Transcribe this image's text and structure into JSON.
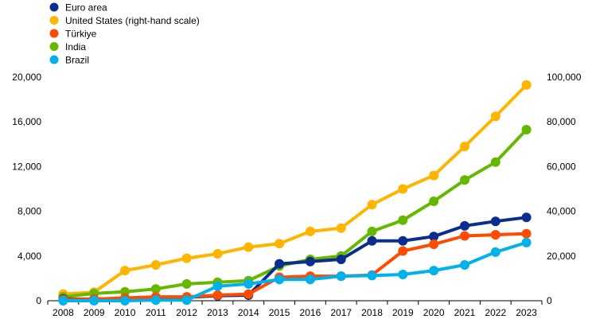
{
  "chart_data": {
    "type": "line",
    "title": "",
    "legend_position": "top-left",
    "grid": false,
    "x": [
      "2008",
      "2009",
      "2010",
      "2011",
      "2012",
      "2013",
      "2014",
      "2015",
      "2016",
      "2017",
      "2018",
      "2019",
      "2020",
      "2021",
      "2022",
      "2023"
    ],
    "y_left": {
      "min": 0,
      "max": 20000,
      "ticks": [
        "0",
        "4,000",
        "8,000",
        "12,000",
        "16,000",
        "20,000"
      ],
      "tick_values": [
        0,
        4000,
        8000,
        12000,
        16000,
        20000
      ]
    },
    "y_right": {
      "min": 0,
      "max": 100000,
      "ticks": [
        "0",
        "20,000",
        "40,000",
        "60,000",
        "80,000",
        "100,000"
      ],
      "tick_values": [
        0,
        20000,
        40000,
        60000,
        80000,
        100000
      ]
    },
    "series": [
      {
        "name": "Euro area",
        "color": "#0b2d8e",
        "axis": "left",
        "values": [
          150,
          150,
          150,
          250,
          300,
          450,
          500,
          3300,
          3500,
          3700,
          5350,
          5350,
          5750,
          6700,
          7100,
          7450
        ]
      },
      {
        "name": "United States (right-hand scale)",
        "color": "#ffb400",
        "axis": "right",
        "values": [
          3000,
          3800,
          13500,
          16000,
          19000,
          21000,
          24000,
          25500,
          31000,
          32500,
          43000,
          50000,
          56000,
          69000,
          82500,
          96500
        ]
      },
      {
        "name": "Türkiye",
        "color": "#ff4b00",
        "axis": "left",
        "values": [
          100,
          150,
          250,
          350,
          350,
          500,
          600,
          2100,
          2200,
          2200,
          2300,
          4450,
          5050,
          5800,
          5900,
          6000
        ]
      },
      {
        "name": "India",
        "color": "#65b800",
        "axis": "left",
        "values": [
          350,
          650,
          800,
          1050,
          1500,
          1650,
          1800,
          3100,
          3700,
          4000,
          6200,
          7200,
          8900,
          10800,
          12400,
          15300
        ]
      },
      {
        "name": "Brazil",
        "color": "#00b1ea",
        "axis": "left",
        "values": [
          0,
          0,
          0,
          50,
          50,
          1300,
          1500,
          1900,
          1900,
          2200,
          2250,
          2350,
          2700,
          3200,
          4350,
          5200
        ]
      }
    ]
  }
}
